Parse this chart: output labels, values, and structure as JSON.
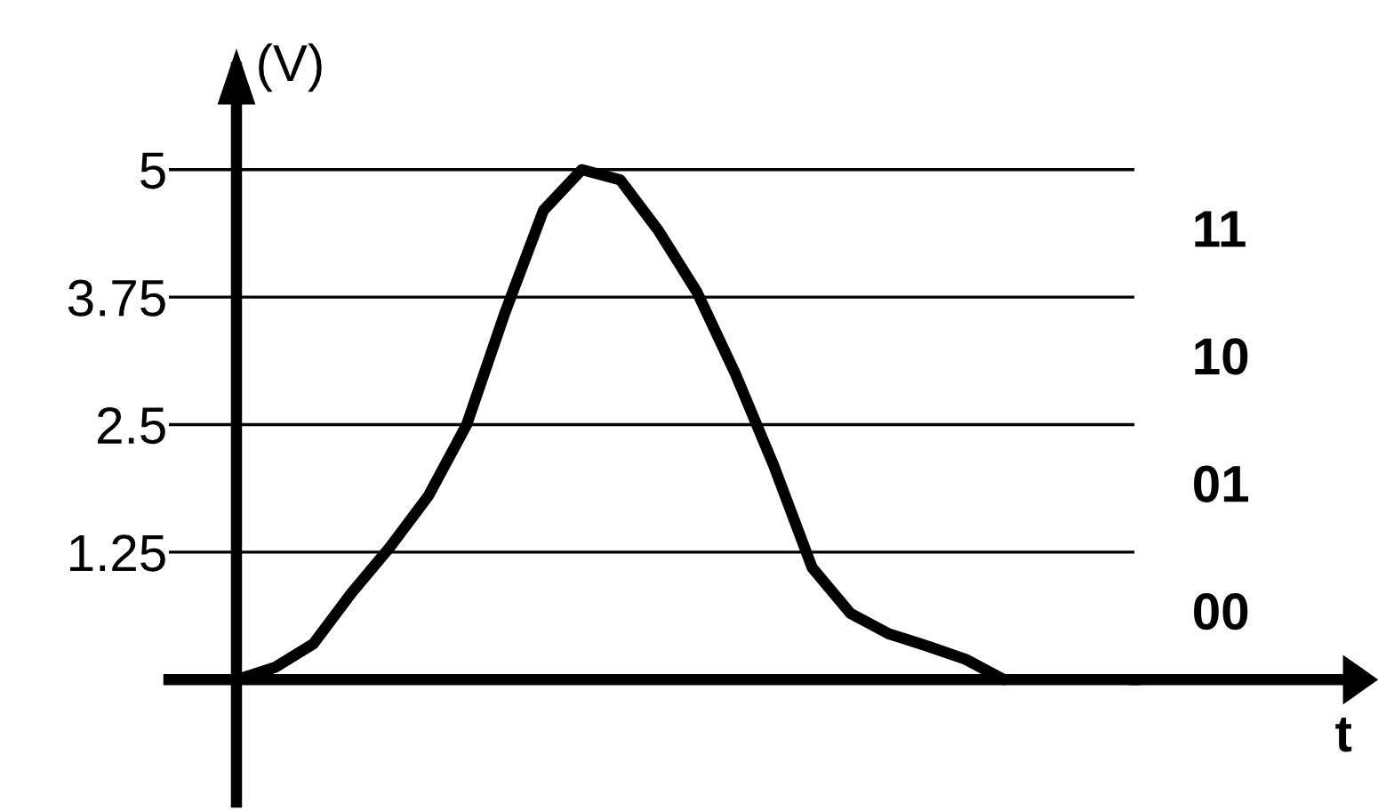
{
  "chart_data": {
    "type": "line",
    "ylabel": "(V)",
    "categories": [
      null,
      null,
      null,
      null,
      null,
      null,
      null,
      null,
      null,
      null,
      null,
      null,
      null,
      null,
      null,
      null,
      null,
      null,
      null,
      null,
      null
    ],
    "series": [
      {
        "color": "#000000",
        "values": [
          0,
          0.12,
          0.35,
          0.85,
          1.3,
          1.8,
          2.5,
          3.6,
          4.6,
          5.0,
          4.9,
          4.4,
          3.8,
          3.0,
          2.1,
          1.1,
          0.65,
          0.45,
          0.33,
          0.2,
          0
        ]
      }
    ],
    "ylim": [
      -1.2,
      6.0
    ],
    "yticks": [
      1.25,
      2.5,
      3.75,
      5
    ],
    "grid": "y",
    "tick_labels": "y",
    "annotations": [
      "00",
      "01",
      "10",
      "11",
      "t"
    ]
  }
}
